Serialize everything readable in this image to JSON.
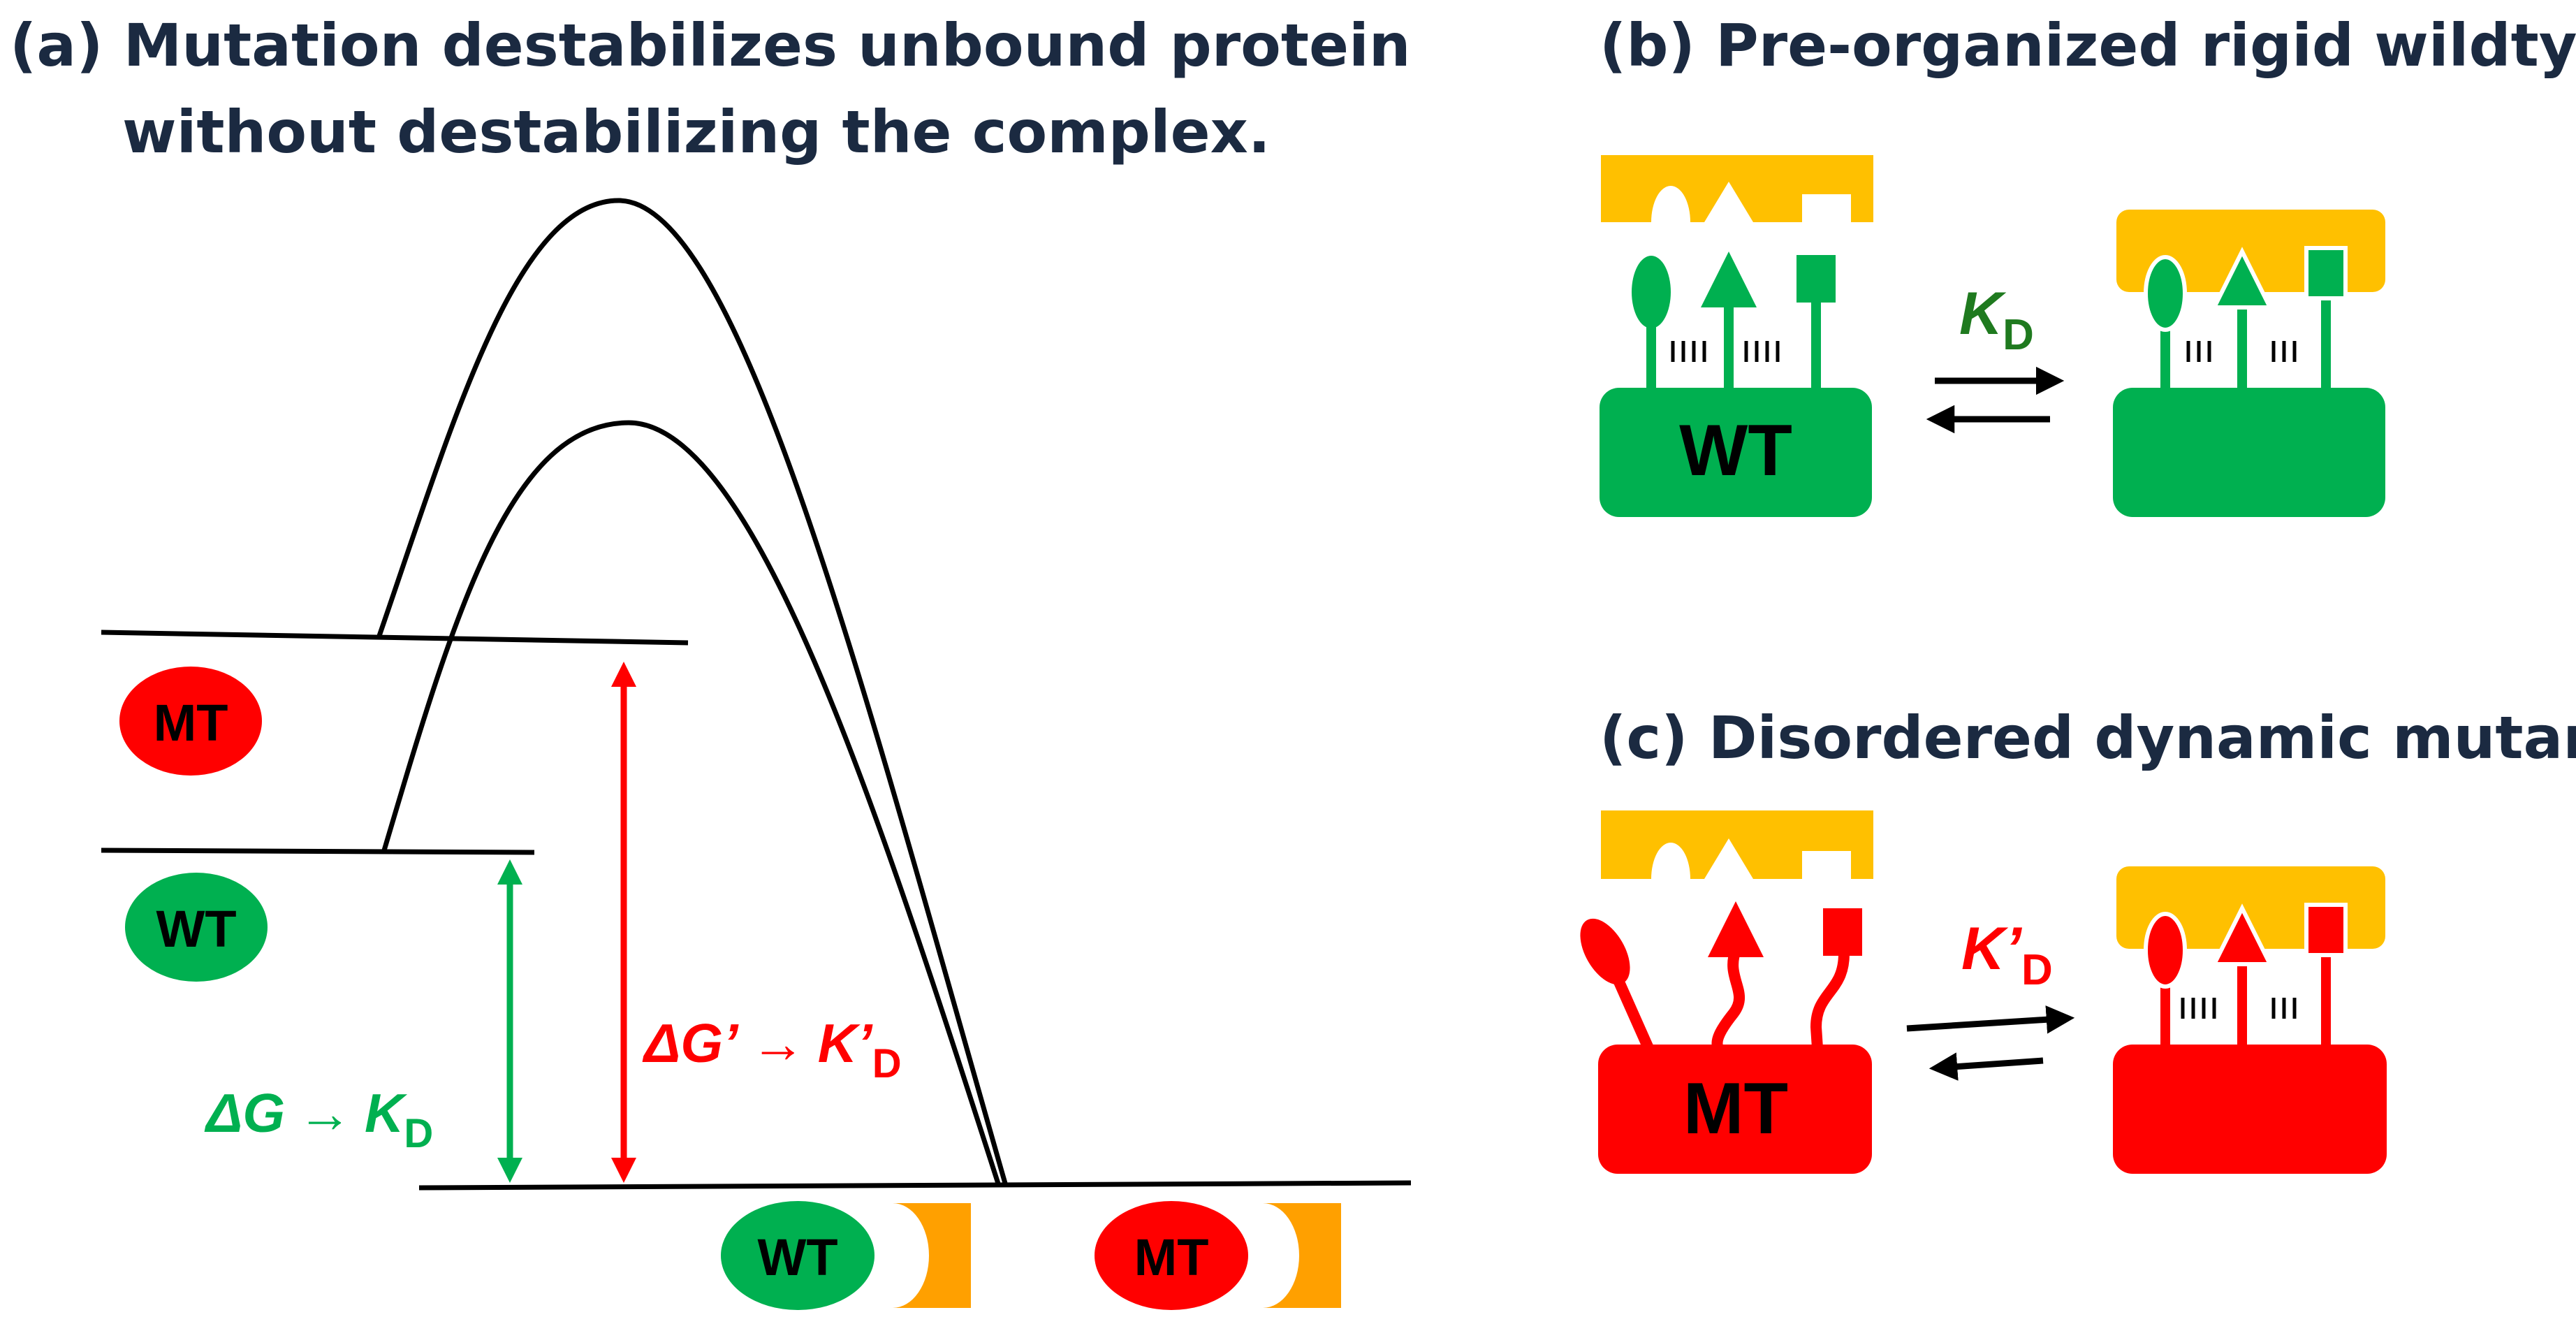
{
  "panel_a": {
    "title_line1": "(a) Mutation destabilizes unbound protein",
    "title_line2": "without destabilizing the complex.",
    "mt_label": "MT",
    "wt_label": "WT",
    "complex_wt_label": "WT",
    "complex_mt_label": "MT",
    "dg_symbol": "ΔG",
    "dg_arrow": "→",
    "kd_k": "K",
    "kd_sub": "D",
    "dgp_symbol": "ΔG’",
    "dgp_arrow": "→",
    "kdp_k": "K’",
    "kdp_sub": "D"
  },
  "panel_b": {
    "title": "(b) Pre-organized rigid wildtype",
    "protein_label": "WT",
    "kd_k": "K",
    "kd_sub": "D"
  },
  "panel_c": {
    "title": "(c) Disordered dynamic mutant",
    "protein_label": "MT",
    "kd_k": "K’",
    "kd_sub": "D"
  },
  "colors": {
    "wildtype": "#00b050",
    "mutant": "#ff0000",
    "ligand": "#ffc000",
    "complex_partner": "#ffa000",
    "title_text": "#1b2a41"
  }
}
